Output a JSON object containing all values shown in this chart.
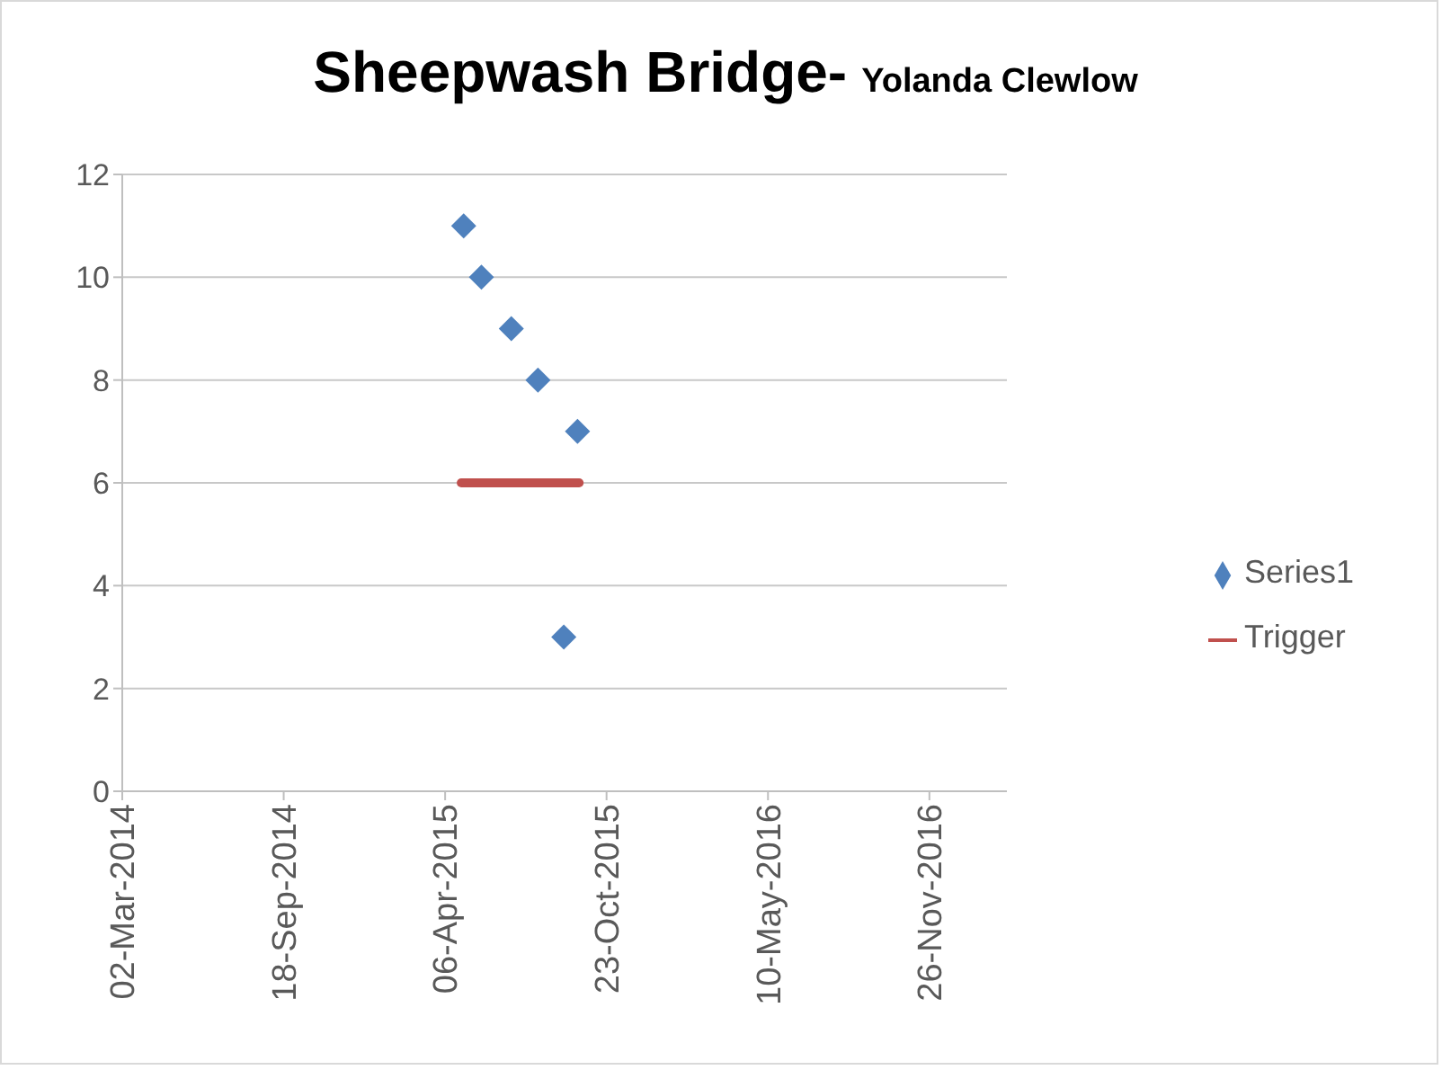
{
  "chart_data": {
    "type": "scatter",
    "title": "Sheepwash Bridge-",
    "subtitle": "Yolanda Clewlow",
    "xlim": [
      "2014-03-02",
      "2017-03-02"
    ],
    "xticks": [
      {
        "value": "2014-03-02",
        "label": "02-Mar-2014"
      },
      {
        "value": "2014-09-18",
        "label": "18-Sep-2014"
      },
      {
        "value": "2015-04-06",
        "label": "06-Apr-2015"
      },
      {
        "value": "2015-10-23",
        "label": "23-Oct-2015"
      },
      {
        "value": "2016-05-10",
        "label": "10-May-2016"
      },
      {
        "value": "2016-11-26",
        "label": "26-Nov-2016"
      }
    ],
    "ylim": [
      0,
      12
    ],
    "yticks": [
      0,
      2,
      4,
      6,
      8,
      10,
      12
    ],
    "grid": "y",
    "legend": "right",
    "marker": "diamond",
    "series": [
      {
        "name": "Series1",
        "color": "#4f81bd",
        "x": [
          "2015-04-29",
          "2015-05-21",
          "2015-06-27",
          "2015-07-30",
          "2015-08-31",
          "2015-09-17"
        ],
        "values": [
          11,
          10,
          9,
          8,
          3,
          7
        ]
      },
      {
        "name": "Trigger",
        "type": "line",
        "color": "#c0504d",
        "marker": "none",
        "x": [
          "2015-04-26",
          "2015-09-19"
        ],
        "values": [
          6,
          6
        ]
      }
    ]
  }
}
